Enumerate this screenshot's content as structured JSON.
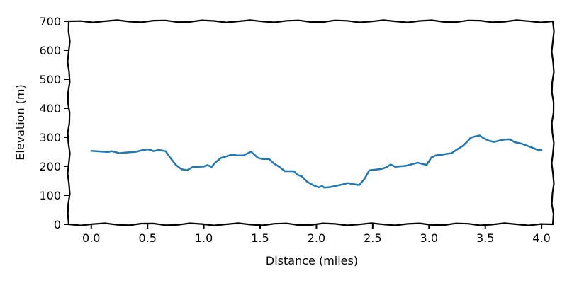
{
  "chart_data": {
    "type": "line",
    "title": "",
    "xlabel": "Distance (miles)",
    "ylabel": "Elevation (m)",
    "xlim": [
      -0.2,
      4.1
    ],
    "ylim": [
      0,
      700
    ],
    "x_ticks": [
      0.0,
      0.5,
      1.0,
      1.5,
      2.0,
      2.5,
      3.0,
      3.5,
      4.0
    ],
    "x_tick_labels": [
      "0.0",
      "0.5",
      "1.0",
      "1.5",
      "2.0",
      "2.5",
      "3.0",
      "3.5",
      "4.0"
    ],
    "y_ticks": [
      0,
      100,
      200,
      300,
      400,
      500,
      600,
      700
    ],
    "y_tick_labels": [
      "0",
      "100",
      "200",
      "300",
      "400",
      "500",
      "600",
      "700"
    ],
    "grid": false,
    "legend": "none",
    "style": "xkcd",
    "series": [
      {
        "color": "#1f77b4",
        "x": [
          0.0,
          0.08,
          0.15,
          0.18,
          0.25,
          0.3,
          0.4,
          0.45,
          0.5,
          0.53,
          0.55,
          0.6,
          0.63,
          0.66,
          0.7,
          0.75,
          0.8,
          0.85,
          0.9,
          0.95,
          1.0,
          1.03,
          1.07,
          1.1,
          1.15,
          1.2,
          1.25,
          1.3,
          1.35,
          1.42,
          1.48,
          1.52,
          1.58,
          1.62,
          1.67,
          1.72,
          1.8,
          1.83,
          1.87,
          1.92,
          1.97,
          2.02,
          2.05,
          2.07,
          2.12,
          2.18,
          2.23,
          2.28,
          2.33,
          2.38,
          2.43,
          2.47,
          2.52,
          2.58,
          2.62,
          2.66,
          2.7,
          2.75,
          2.8,
          2.85,
          2.9,
          2.95,
          2.98,
          3.02,
          3.06,
          3.12,
          3.16,
          3.2,
          3.25,
          3.3,
          3.34,
          3.37,
          3.4,
          3.45,
          3.48,
          3.53,
          3.58,
          3.62,
          3.67,
          3.72,
          3.76,
          3.82,
          3.87,
          3.92,
          3.96,
          4.0
        ],
        "y": [
          253,
          251,
          249,
          252,
          245,
          247,
          250,
          255,
          258,
          256,
          252,
          256,
          254,
          252,
          230,
          205,
          190,
          186,
          197,
          198,
          199,
          204,
          198,
          212,
          228,
          234,
          240,
          237,
          237,
          250,
          229,
          225,
          225,
          210,
          198,
          183,
          183,
          171,
          165,
          146,
          135,
          127,
          132,
          126,
          128,
          133,
          137,
          142,
          138,
          135,
          158,
          186,
          188,
          191,
          196,
          206,
          198,
          200,
          202,
          207,
          212,
          207,
          205,
          230,
          237,
          240,
          243,
          245,
          258,
          270,
          285,
          298,
          302,
          306,
          298,
          288,
          284,
          288,
          292,
          293,
          283,
          278,
          271,
          264,
          257,
          256
        ]
      }
    ]
  }
}
